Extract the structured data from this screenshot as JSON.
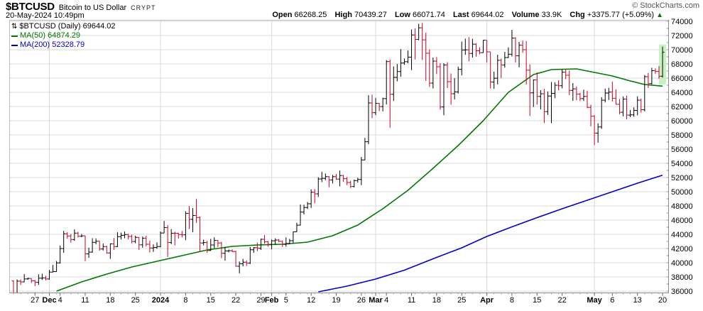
{
  "header": {
    "symbol": "$BTCUSD",
    "name": "Bitcoin to US Dollar",
    "exchange": "CRYPT",
    "datetime": "20-May-2024 10:49pm",
    "copyright": "© StockCharts.com",
    "quote": {
      "open_label": "Open",
      "open": "66268.25",
      "high_label": "High",
      "high": "70439.27",
      "low_label": "Low",
      "low": "66071.74",
      "last_label": "Last",
      "last": "69644.02",
      "volume_label": "Volume",
      "volume": "33.9K",
      "chg_label": "Chg",
      "chg": "+3375.77 (+5.09%)",
      "chg_arrow": "▲"
    }
  },
  "legend": {
    "icon_glyph": "⇅",
    "main": "$BTCUSD (Daily) 69644.02",
    "ma50": "MA(50) 64874.29",
    "ma200": "MA(200) 52328.79"
  },
  "chart_data": {
    "type": "bar",
    "title": "$BTCUSD (Daily)",
    "xlabel": "",
    "ylabel": "",
    "ylim": [
      36000,
      74000
    ],
    "y_tick_step": 2000,
    "y_minor_step": 1000,
    "grid": true,
    "start_date": "2023-11-21",
    "end_date": "2024-05-20",
    "colors": {
      "up": "#000000",
      "down": "#cc0022",
      "ma50": "#007700",
      "ma200": "#0000cc",
      "grid": "#d9d9d9",
      "axis": "#888888",
      "highlight": "#c6f2c2"
    },
    "x_labels": [
      {
        "d": 6,
        "t": "27"
      },
      {
        "d": 10,
        "t": "Dec",
        "b": 1
      },
      {
        "d": 13,
        "t": "4"
      },
      {
        "d": 20,
        "t": "11"
      },
      {
        "d": 27,
        "t": "18"
      },
      {
        "d": 34,
        "t": "25"
      },
      {
        "d": 41,
        "t": "2024",
        "b": 1
      },
      {
        "d": 48,
        "t": "8"
      },
      {
        "d": 55,
        "t": "15"
      },
      {
        "d": 62,
        "t": "22"
      },
      {
        "d": 69,
        "t": "29"
      },
      {
        "d": 72,
        "t": "Feb",
        "b": 1
      },
      {
        "d": 76,
        "t": "5"
      },
      {
        "d": 83,
        "t": "12"
      },
      {
        "d": 90,
        "t": "19"
      },
      {
        "d": 97,
        "t": "26"
      },
      {
        "d": 101,
        "t": "Mar",
        "b": 1
      },
      {
        "d": 104,
        "t": "4"
      },
      {
        "d": 111,
        "t": "11"
      },
      {
        "d": 118,
        "t": "18"
      },
      {
        "d": 125,
        "t": "25"
      },
      {
        "d": 132,
        "t": "Apr",
        "b": 1
      },
      {
        "d": 139,
        "t": "8"
      },
      {
        "d": 146,
        "t": "15"
      },
      {
        "d": 153,
        "t": "22"
      },
      {
        "d": 162,
        "t": "May",
        "b": 1
      },
      {
        "d": 167,
        "t": "6"
      },
      {
        "d": 174,
        "t": "13"
      },
      {
        "d": 181,
        "t": "20"
      }
    ],
    "month_gridline_days": [
      10,
      41,
      72,
      101,
      132,
      162
    ],
    "candles": [
      [
        37430,
        37520,
        35630,
        35752
      ],
      [
        35752,
        37650,
        35632,
        37408
      ],
      [
        37408,
        37653,
        36870,
        37294
      ],
      [
        37294,
        38415,
        37253,
        37713
      ],
      [
        37713,
        37888,
        37591,
        37780
      ],
      [
        37780,
        37814,
        37150,
        37447
      ],
      [
        37447,
        37569,
        36707,
        37242
      ],
      [
        37242,
        38368,
        36868,
        37818
      ],
      [
        37818,
        38450,
        37570,
        37854
      ],
      [
        37854,
        38146,
        37500,
        37712
      ],
      [
        37712,
        38999,
        37615,
        38682
      ],
      [
        38682,
        39680,
        38641,
        38745
      ],
      [
        38745,
        40250,
        38715,
        39972
      ],
      [
        39972,
        42420,
        39880,
        41991
      ],
      [
        41991,
        44490,
        41400,
        44080
      ],
      [
        44080,
        44297,
        43374,
        43764
      ],
      [
        43764,
        44047,
        42821,
        43270
      ],
      [
        43270,
        44705,
        43081,
        44172
      ],
      [
        44172,
        44358,
        43561,
        43725
      ],
      [
        43725,
        44049,
        43584,
        43789
      ],
      [
        43789,
        43804,
        40222,
        41243
      ],
      [
        41243,
        42115,
        40680,
        41492
      ],
      [
        41492,
        43450,
        41415,
        42869
      ],
      [
        42869,
        43420,
        42590,
        43022
      ],
      [
        43022,
        43080,
        41680,
        41929
      ],
      [
        41929,
        42700,
        41722,
        42278
      ],
      [
        42278,
        42395,
        41252,
        41374
      ],
      [
        41374,
        42720,
        40542,
        42657
      ],
      [
        42657,
        43478,
        41811,
        42277
      ],
      [
        42277,
        44283,
        42206,
        43668
      ],
      [
        43668,
        44242,
        43291,
        43861
      ],
      [
        43861,
        44400,
        43441,
        43969
      ],
      [
        43969,
        44080,
        43297,
        43702
      ],
      [
        43702,
        43945,
        42714,
        42991
      ],
      [
        42991,
        43804,
        42745,
        43576
      ],
      [
        43576,
        43592,
        41811,
        42520
      ],
      [
        42520,
        43677,
        42113,
        43442
      ],
      [
        43442,
        43804,
        42317,
        42600
      ],
      [
        42600,
        43111,
        41438,
        42072
      ],
      [
        42072,
        42584,
        41520,
        42141
      ],
      [
        42141,
        42860,
        41965,
        42280
      ],
      [
        42280,
        44400,
        42180,
        44184
      ],
      [
        44184,
        45880,
        44148,
        44946
      ],
      [
        44946,
        45310,
        40813,
        42845
      ],
      [
        42845,
        44730,
        42613,
        44151
      ],
      [
        44151,
        44357,
        42450,
        44145
      ],
      [
        44145,
        44214,
        43397,
        43968
      ],
      [
        43968,
        44480,
        43572,
        43929
      ],
      [
        43929,
        47248,
        43175,
        46951
      ],
      [
        46951,
        47972,
        44748,
        46110
      ],
      [
        46110,
        47695,
        44300,
        46650
      ],
      [
        46650,
        48969,
        45606,
        46368
      ],
      [
        46368,
        46515,
        41500,
        42782
      ],
      [
        42782,
        43257,
        42436,
        42842
      ],
      [
        42842,
        43079,
        41394,
        41715
      ],
      [
        41715,
        43354,
        41676,
        42499
      ],
      [
        42499,
        43578,
        42050,
        43137
      ],
      [
        43137,
        43198,
        42201,
        42776
      ],
      [
        42776,
        42930,
        40631,
        41327
      ],
      [
        41327,
        42196,
        40280,
        41659
      ],
      [
        41659,
        41852,
        41456,
        41696
      ],
      [
        41696,
        41881,
        41500,
        41580
      ],
      [
        41580,
        41689,
        39431,
        39507
      ],
      [
        39507,
        40176,
        38505,
        39845
      ],
      [
        39845,
        40555,
        39484,
        40077
      ],
      [
        40077,
        40300,
        39550,
        39936
      ],
      [
        39936,
        42200,
        39822,
        41823
      ],
      [
        41823,
        42200,
        41394,
        42120
      ],
      [
        42120,
        42842,
        41620,
        42031
      ],
      [
        42031,
        43390,
        41804,
        43302
      ],
      [
        43302,
        43882,
        42683,
        42941
      ],
      [
        42941,
        43071,
        42276,
        42580
      ],
      [
        42580,
        43265,
        41884,
        43082
      ],
      [
        43082,
        43443,
        42546,
        43194
      ],
      [
        43194,
        43354,
        42880,
        43011
      ],
      [
        43011,
        43119,
        42222,
        42582
      ],
      [
        42582,
        43556,
        42258,
        42708
      ],
      [
        42708,
        43364,
        42574,
        43098
      ],
      [
        43098,
        44396,
        42788,
        44349
      ],
      [
        44349,
        45614,
        44335,
        45288
      ],
      [
        45288,
        48200,
        45242,
        47132
      ],
      [
        47132,
        48170,
        46800,
        47771
      ],
      [
        47771,
        48562,
        47557,
        48299
      ],
      [
        48299,
        50334,
        47710,
        49917
      ],
      [
        49917,
        50368,
        48362,
        49699
      ],
      [
        49699,
        52039,
        49272,
        51795
      ],
      [
        51795,
        52820,
        51342,
        51880
      ],
      [
        51880,
        52559,
        51613,
        52124
      ],
      [
        52124,
        52191,
        50625,
        51662
      ],
      [
        51662,
        52377,
        51168,
        52122
      ],
      [
        52122,
        52486,
        51677,
        51779
      ],
      [
        51779,
        52985,
        50760,
        52284
      ],
      [
        52284,
        52368,
        51370,
        51839
      ],
      [
        51839,
        52076,
        50930,
        51304
      ],
      [
        51304,
        51540,
        50521,
        50731
      ],
      [
        50731,
        51698,
        50585,
        51571
      ],
      [
        51571,
        51958,
        51279,
        51733
      ],
      [
        51733,
        54900,
        50931,
        54476
      ],
      [
        54476,
        57580,
        54441,
        57037
      ],
      [
        57037,
        63585,
        56691,
        62504
      ],
      [
        62504,
        63676,
        60364,
        61130
      ],
      [
        61130,
        63219,
        60783,
        62440
      ],
      [
        62440,
        62500,
        61350,
        61987
      ],
      [
        61987,
        63231,
        61320,
        63113
      ],
      [
        63113,
        68537,
        62300,
        68330
      ],
      [
        68330,
        68629,
        59005,
        63724
      ],
      [
        63724,
        67641,
        62779,
        66106
      ],
      [
        66106,
        67980,
        65551,
        66925
      ],
      [
        66925,
        70083,
        66181,
        68124
      ],
      [
        68124,
        68769,
        67868,
        68313
      ],
      [
        68313,
        69887,
        68094,
        68955
      ],
      [
        68955,
        72850,
        67127,
        72078
      ],
      [
        72078,
        73000,
        68620,
        71452
      ],
      [
        71452,
        73637,
        71334,
        73083
      ],
      [
        73083,
        73777,
        68555,
        71388
      ],
      [
        71388,
        72419,
        65600,
        69499
      ],
      [
        69499,
        70043,
        64760,
        65300
      ],
      [
        65300,
        68904,
        64533,
        68393
      ],
      [
        68393,
        68956,
        66569,
        67609
      ],
      [
        67609,
        68109,
        61555,
        61937
      ],
      [
        61937,
        68100,
        60775,
        67840
      ],
      [
        67840,
        68240,
        64589,
        65501
      ],
      [
        65501,
        66649,
        62260,
        63796
      ],
      [
        63796,
        65999,
        63000,
        64062
      ],
      [
        64062,
        67622,
        63832,
        67234
      ],
      [
        67234,
        71150,
        66385,
        69958
      ],
      [
        69958,
        71561,
        69280,
        69988
      ],
      [
        69988,
        71769,
        68359,
        69469
      ],
      [
        69469,
        71552,
        68903,
        70780
      ],
      [
        70780,
        70916,
        69009,
        69850
      ],
      [
        69850,
        70321,
        69340,
        69582
      ],
      [
        69582,
        71366,
        69562,
        71333
      ],
      [
        71333,
        71342,
        68212,
        69702
      ],
      [
        69702,
        69708,
        64550,
        65446
      ],
      [
        65446,
        66914,
        64493,
        65980
      ],
      [
        65980,
        69291,
        65113,
        68508
      ],
      [
        68508,
        68756,
        66011,
        67837
      ],
      [
        67837,
        69692,
        67465,
        68896
      ],
      [
        68896,
        70326,
        68825,
        69362
      ],
      [
        69362,
        72797,
        69043,
        71631
      ],
      [
        71631,
        71758,
        68210,
        69140
      ],
      [
        69140,
        71093,
        67518,
        70631
      ],
      [
        70631,
        71308,
        69567,
        70006
      ],
      [
        70006,
        71227,
        65086,
        67116
      ],
      [
        67116,
        67929,
        60660,
        63924
      ],
      [
        63924,
        65824,
        61930,
        65738
      ],
      [
        65738,
        66817,
        62274,
        63419
      ],
      [
        63419,
        64305,
        61600,
        63793
      ],
      [
        63793,
        64486,
        59678,
        61277
      ],
      [
        61277,
        64117,
        60803,
        63474
      ],
      [
        63474,
        65450,
        59651,
        63843
      ],
      [
        63843,
        65419,
        63170,
        64994
      ],
      [
        64994,
        65695,
        64277,
        64926
      ],
      [
        64926,
        67232,
        64548,
        66837
      ],
      [
        66837,
        67184,
        65865,
        66407
      ],
      [
        66407,
        67084,
        63606,
        64276
      ],
      [
        64276,
        65297,
        62794,
        64481
      ],
      [
        64481,
        64820,
        62880,
        63755
      ],
      [
        63755,
        63925,
        62777,
        63113
      ],
      [
        63113,
        64370,
        62781,
        63419
      ],
      [
        63419,
        64228,
        61765,
        61875
      ],
      [
        61875,
        62266,
        59191,
        60636
      ],
      [
        60636,
        60780,
        56552,
        58254
      ],
      [
        58254,
        59625,
        56911,
        59123
      ],
      [
        59123,
        63320,
        58848,
        62889
      ],
      [
        62889,
        64522,
        62569,
        63892
      ],
      [
        63892,
        64630,
        62923,
        64031
      ],
      [
        64031,
        65500,
        62700,
        63161
      ],
      [
        63161,
        64420,
        62261,
        62312
      ],
      [
        62312,
        63051,
        60888,
        61187
      ],
      [
        61187,
        63428,
        60630,
        63049
      ],
      [
        63049,
        63516,
        60193,
        60792
      ],
      [
        60792,
        61515,
        60487,
        60825
      ],
      [
        60825,
        61875,
        60557,
        61448
      ],
      [
        61448,
        63444,
        60750,
        62901
      ],
      [
        62901,
        63115,
        61142,
        61552
      ],
      [
        61552,
        66444,
        61316,
        66206
      ],
      [
        66206,
        66747,
        64605,
        65231
      ],
      [
        65231,
        67460,
        65106,
        67051
      ],
      [
        67051,
        67378,
        66610,
        66940
      ],
      [
        66940,
        67705,
        65902,
        66268
      ],
      [
        66268.25,
        70439.27,
        66071.74,
        69644.02
      ]
    ],
    "ma50": [
      [
        12,
        36000
      ],
      [
        19,
        37300
      ],
      [
        26,
        38400
      ],
      [
        33,
        39400
      ],
      [
        40,
        40200
      ],
      [
        47,
        41000
      ],
      [
        54,
        41800
      ],
      [
        61,
        42300
      ],
      [
        68,
        42500
      ],
      [
        75,
        42600
      ],
      [
        82,
        42900
      ],
      [
        89,
        43800
      ],
      [
        96,
        45300
      ],
      [
        103,
        47600
      ],
      [
        110,
        50200
      ],
      [
        117,
        53300
      ],
      [
        124,
        56500
      ],
      [
        131,
        60000
      ],
      [
        138,
        64000
      ],
      [
        145,
        66500
      ],
      [
        150,
        67200
      ],
      [
        157,
        67300
      ],
      [
        162,
        66800
      ],
      [
        167,
        66300
      ],
      [
        172,
        65600
      ],
      [
        176,
        65100
      ],
      [
        181,
        64874.29
      ]
    ],
    "ma200": [
      [
        85,
        35900
      ],
      [
        93,
        36700
      ],
      [
        101,
        37700
      ],
      [
        109,
        38950
      ],
      [
        118,
        40750
      ],
      [
        125,
        42100
      ],
      [
        132,
        43700
      ],
      [
        139,
        45050
      ],
      [
        146,
        46350
      ],
      [
        153,
        47600
      ],
      [
        160,
        48800
      ],
      [
        167,
        50000
      ],
      [
        174,
        51200
      ],
      [
        181,
        52328.79
      ]
    ],
    "last_bar_highlighted": true,
    "legend_position": "top-left"
  }
}
